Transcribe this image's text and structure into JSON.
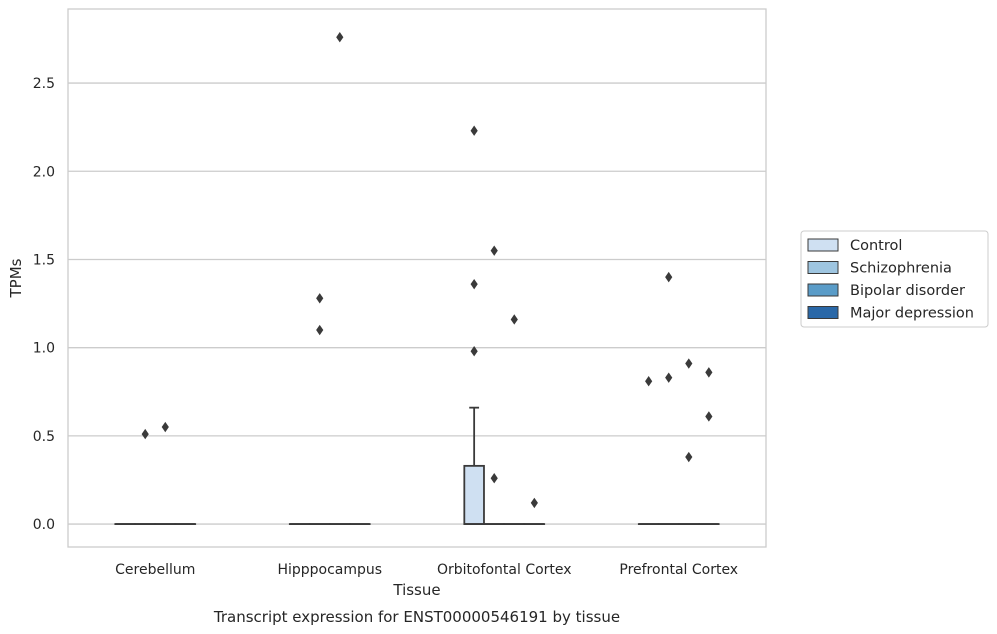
{
  "chart_data": {
    "type": "box",
    "title": "Transcript expression for ENST00000546191 by tissue",
    "xlabel": "Tissue",
    "ylabel": "TPMs",
    "categories": [
      "Cerebellum",
      "Hipppocampus",
      "Orbitofontal Cortex",
      "Prefrontal Cortex"
    ],
    "ylim": [
      -0.13,
      2.92
    ],
    "yticks": [
      0.0,
      0.5,
      1.0,
      1.5,
      2.0,
      2.5
    ],
    "ytick_labels": [
      "0.0",
      "0.5",
      "1.0",
      "1.5",
      "2.0",
      "2.5"
    ],
    "grid": "horizontal",
    "legend": {
      "placement": "right",
      "entries": [
        "Control",
        "Schizophrenia",
        "Bipolar disorder",
        "Major depression"
      ]
    },
    "series": [
      {
        "name": "Control",
        "color": "#cfe0f2",
        "boxes": [
          {
            "q1": 0,
            "median": 0,
            "q3": 0,
            "whisker_low": 0,
            "whisker_high": 0,
            "outliers": []
          },
          {
            "q1": 0,
            "median": 0,
            "q3": 0,
            "whisker_low": 0,
            "whisker_high": 0,
            "outliers": []
          },
          {
            "q1": 0,
            "median": 0,
            "q3": 0.33,
            "whisker_low": 0,
            "whisker_high": 0.66,
            "outliers": [
              0.98,
              1.36,
              2.23
            ]
          },
          {
            "q1": 0,
            "median": 0,
            "q3": 0,
            "whisker_low": 0,
            "whisker_high": 0,
            "outliers": [
              0.81
            ]
          }
        ]
      },
      {
        "name": "Schizophrenia",
        "color": "#9ec5e0",
        "boxes": [
          {
            "q1": 0,
            "median": 0,
            "q3": 0,
            "whisker_low": 0,
            "whisker_high": 0,
            "outliers": [
              0.51
            ]
          },
          {
            "q1": 0,
            "median": 0,
            "q3": 0,
            "whisker_low": 0,
            "whisker_high": 0,
            "outliers": [
              1.1,
              1.28
            ]
          },
          {
            "q1": 0,
            "median": 0,
            "q3": 0,
            "whisker_low": 0,
            "whisker_high": 0,
            "outliers": [
              0.26,
              1.55
            ]
          },
          {
            "q1": 0,
            "median": 0,
            "q3": 0,
            "whisker_low": 0,
            "whisker_high": 0,
            "outliers": [
              0.83,
              1.4
            ]
          }
        ]
      },
      {
        "name": "Bipolar disorder",
        "color": "#5a9cc8",
        "boxes": [
          {
            "q1": 0,
            "median": 0,
            "q3": 0,
            "whisker_low": 0,
            "whisker_high": 0,
            "outliers": [
              0.55
            ]
          },
          {
            "q1": 0,
            "median": 0,
            "q3": 0,
            "whisker_low": 0,
            "whisker_high": 0,
            "outliers": [
              2.76
            ]
          },
          {
            "q1": 0,
            "median": 0,
            "q3": 0,
            "whisker_low": 0,
            "whisker_high": 0,
            "outliers": [
              1.16
            ]
          },
          {
            "q1": 0,
            "median": 0,
            "q3": 0,
            "whisker_low": 0,
            "whisker_high": 0,
            "outliers": [
              0.38,
              0.91
            ]
          }
        ]
      },
      {
        "name": "Major depression",
        "color": "#2a68a8",
        "boxes": [
          {
            "q1": 0,
            "median": 0,
            "q3": 0,
            "whisker_low": 0,
            "whisker_high": 0,
            "outliers": []
          },
          {
            "q1": 0,
            "median": 0,
            "q3": 0,
            "whisker_low": 0,
            "whisker_high": 0,
            "outliers": []
          },
          {
            "q1": 0,
            "median": 0,
            "q3": 0,
            "whisker_low": 0,
            "whisker_high": 0,
            "outliers": [
              0.12
            ]
          },
          {
            "q1": 0,
            "median": 0,
            "q3": 0,
            "whisker_low": 0,
            "whisker_high": 0,
            "outliers": [
              0.61,
              0.86
            ]
          }
        ]
      }
    ]
  }
}
